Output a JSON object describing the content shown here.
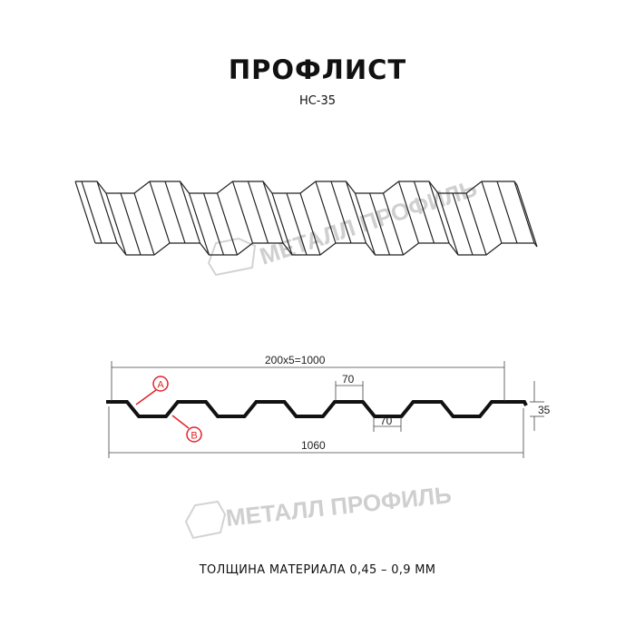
{
  "header": {
    "title": "ПРОФЛИСТ",
    "subtitle": "НС-35"
  },
  "drawing": {
    "dim_pitch": "200x5=1000",
    "dim_total": "1060",
    "dim_height": "35",
    "dim_top_width": "70",
    "dim_bottom_width": "70",
    "marker_a": "A",
    "marker_b": "B",
    "marker_color": "#e0242a"
  },
  "watermark": "МЕТАЛЛ ПРОФИЛЬ",
  "footer": {
    "thickness": "ТОЛЩИНА МАТЕРИАЛА 0,45 – 0,9 ММ"
  }
}
